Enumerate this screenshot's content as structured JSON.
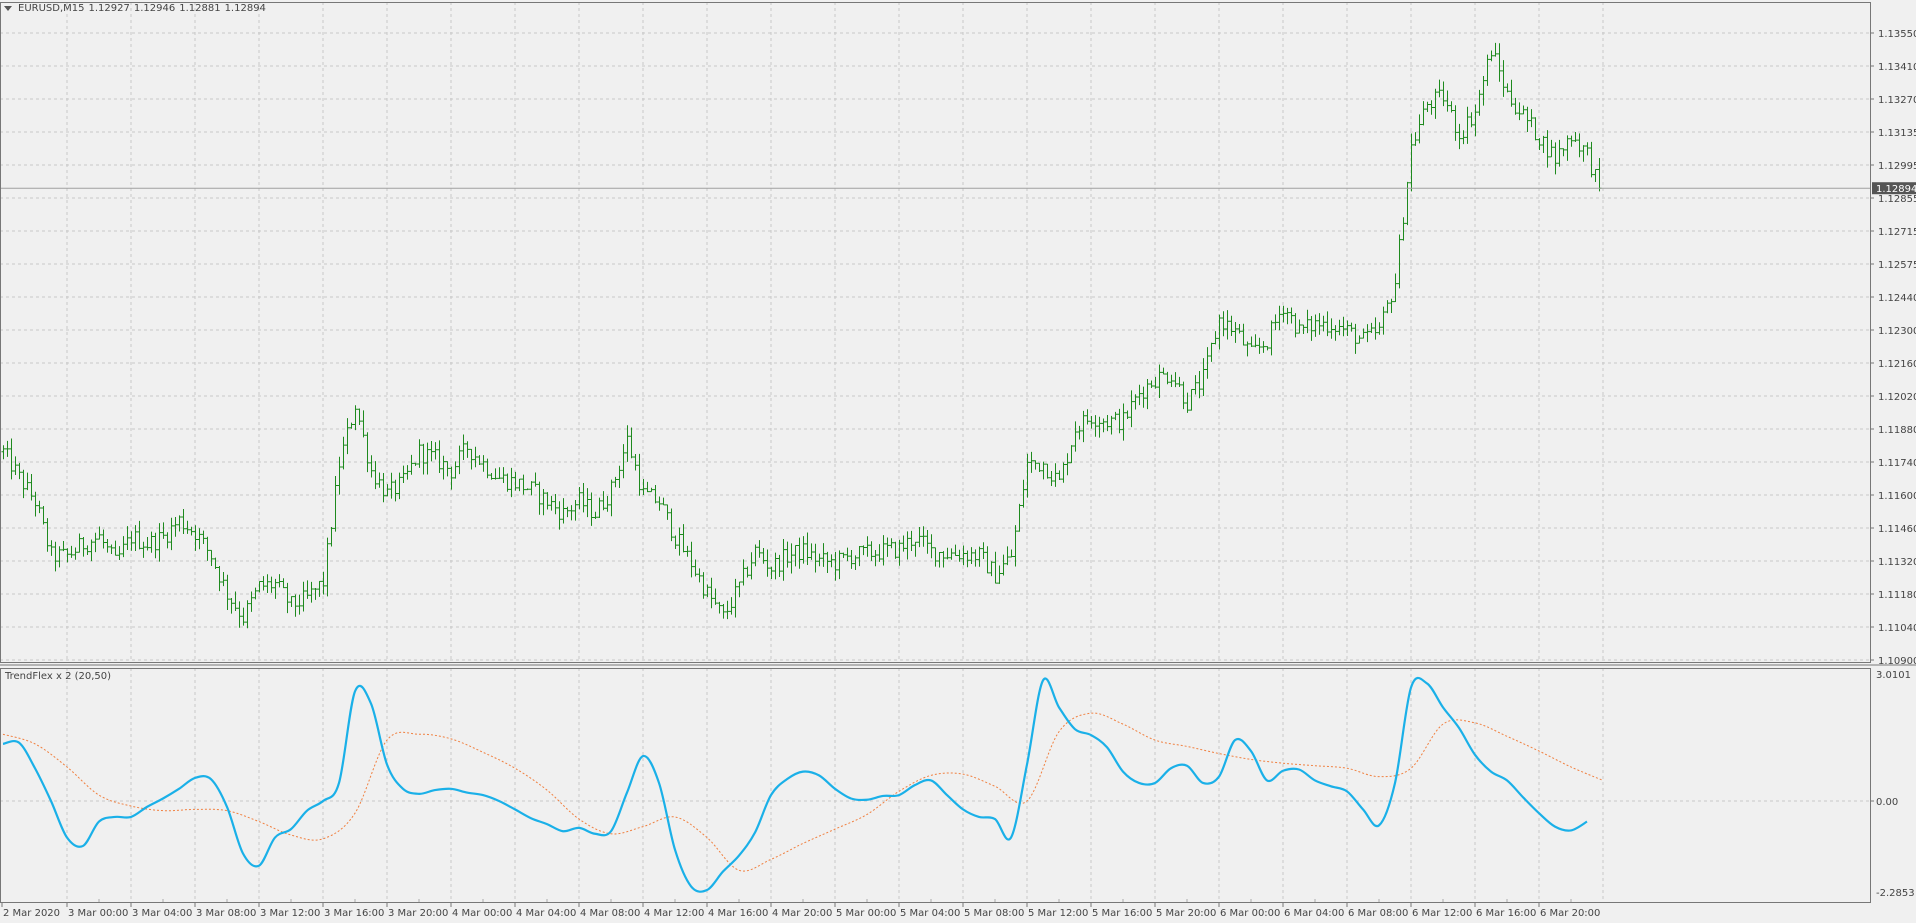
{
  "header": {
    "dropdown_icon": "triangle-down-icon",
    "symbol": "EURUSD,M15",
    "open": "1.12927",
    "high": "1.12946",
    "low": "1.12881",
    "close": "1.12894"
  },
  "colors": {
    "background": "#f0f0f0",
    "grid": "#c8c8c8",
    "bars": "#1e8a1e",
    "trendflex": "#1ab0e8",
    "signal": "#f08040",
    "price_line": "#a0a0a0",
    "price_tag": "#555555"
  },
  "price_axis": {
    "labels": [
      "1.13550",
      "1.13410",
      "1.13270",
      "1.13135",
      "1.12995",
      "1.12855",
      "1.12715",
      "1.12575",
      "1.12440",
      "1.12300",
      "1.12160",
      "1.12020",
      "1.11880",
      "1.11740",
      "1.11600",
      "1.11460",
      "1.11320",
      "1.11180",
      "1.11040",
      "1.10900"
    ],
    "current_price": "1.12894"
  },
  "indicator": {
    "label": "TrendFlex x 2 (20,50)",
    "axis_labels": [
      "3.0101",
      "0.00",
      "-2.2853"
    ],
    "max": 3.0101,
    "min": -2.2853
  },
  "time_axis": {
    "labels": [
      "2 Mar 2020",
      "3 Mar 00:00",
      "3 Mar 04:00",
      "3 Mar 08:00",
      "3 Mar 12:00",
      "3 Mar 16:00",
      "3 Mar 20:00",
      "4 Mar 00:00",
      "4 Mar 04:00",
      "4 Mar 08:00",
      "4 Mar 12:00",
      "4 Mar 16:00",
      "4 Mar 20:00",
      "5 Mar 00:00",
      "5 Mar 04:00",
      "5 Mar 08:00",
      "5 Mar 12:00",
      "5 Mar 16:00",
      "5 Mar 20:00",
      "6 Mar 00:00",
      "6 Mar 04:00",
      "6 Mar 08:00",
      "6 Mar 12:00",
      "6 Mar 16:00",
      "6 Mar 20:00"
    ]
  },
  "chart_data": [
    {
      "type": "ohlc",
      "timeframe": "M15",
      "series_start": "2 Mar 20:00",
      "step_hours": 1,
      "hourly_closes_approx": [
        1.1178,
        1.1167,
        1.1157,
        1.1134,
        1.1134,
        1.1139,
        1.1142,
        1.1131,
        1.1142,
        1.1139,
        1.1142,
        1.1149,
        1.1144,
        1.1134,
        1.1118,
        1.1108,
        1.1121,
        1.1122,
        1.1113,
        1.1116,
        1.1123,
        1.1173,
        1.1198,
        1.117,
        1.116,
        1.1165,
        1.1178,
        1.1175,
        1.117,
        1.118,
        1.1173,
        1.1167,
        1.1165,
        1.1162,
        1.1157,
        1.1152,
        1.1157,
        1.1152,
        1.1162,
        1.1183,
        1.116,
        1.1157,
        1.1142,
        1.1131,
        1.1118,
        1.1108,
        1.1121,
        1.1136,
        1.1129,
        1.1134,
        1.1136,
        1.1132,
        1.1131,
        1.1134,
        1.1135,
        1.1136,
        1.1137,
        1.1142,
        1.1136,
        1.1135,
        1.1135,
        1.1134,
        1.1126,
        1.1134,
        1.1173,
        1.1173,
        1.1165,
        1.1188,
        1.1193,
        1.1191,
        1.1191,
        1.1203,
        1.1209,
        1.1211,
        1.1199,
        1.1209,
        1.1234,
        1.1229,
        1.1219,
        1.1225,
        1.124,
        1.1229,
        1.1232,
        1.1232,
        1.1229,
        1.1225,
        1.1229,
        1.125,
        1.1307,
        1.1325,
        1.1328,
        1.1312,
        1.1322,
        1.1348,
        1.1329,
        1.132,
        1.1311,
        1.1302,
        1.1312,
        1.1304
      ],
      "last_close": 1.12894,
      "ylim": [
        1.109,
        1.1355
      ]
    },
    {
      "type": "line",
      "name": "TrendFlex x 2 (20,50)",
      "ylim": [
        -2.2853,
        3.0101
      ],
      "series": [
        {
          "start": "2 Mar 20:00",
          "step_hours": 1,
          "values": [
            1.36,
            1.39,
            0.78,
            0,
            -0.87,
            -1.07,
            -0.49,
            -0.38,
            -0.38,
            -0.14,
            0.06,
            0.29,
            0.55,
            0.52,
            -0.14,
            -1.25,
            -1.54,
            -0.87,
            -0.67,
            -0.23,
            0,
            0.43,
            2.61,
            2.32,
            0.87,
            0.29,
            0.17,
            0.26,
            0.29,
            0.2,
            0.14,
            0,
            -0.2,
            -0.41,
            -0.55,
            -0.72,
            -0.64,
            -0.78,
            -0.72,
            0.2,
            1.07,
            0.43,
            -1.16,
            -2.03,
            -2.12,
            -1.68,
            -1.3,
            -0.75,
            0.14,
            0.52,
            0.7,
            0.61,
            0.29,
            0.06,
            0.03,
            0.12,
            0.14,
            0.38,
            0.49,
            0.14,
            -0.2,
            -0.38,
            -0.43,
            -0.87,
            0.87,
            2.87,
            2.23,
            1.71,
            1.57,
            1.28,
            0.7,
            0.43,
            0.43,
            0.78,
            0.84,
            0.43,
            0.58,
            1.45,
            1.19,
            0.49,
            0.72,
            0.75,
            0.49,
            0.35,
            0.23,
            -0.2,
            -0.58,
            0.43,
            2.7,
            2.8,
            2.23,
            1.74,
            1.1,
            0.7,
            0.49,
            0.09,
            -0.29,
            -0.61,
            -0.7,
            -0.49
          ]
        },
        {
          "start": "2 Mar 20:00",
          "step_hours": 2,
          "values": [
            1.59,
            1.36,
            0.81,
            0.14,
            -0.12,
            -0.23,
            -0.2,
            -0.23,
            -0.49,
            -0.81,
            -0.9,
            -0.29,
            1.45,
            1.59,
            1.48,
            1.16,
            0.78,
            0.26,
            -0.43,
            -0.78,
            -0.61,
            -0.38,
            -0.87,
            -1.65,
            -1.39,
            -1.01,
            -0.67,
            -0.32,
            0.23,
            0.61,
            0.64,
            0.35,
            0,
            1.65,
            2.09,
            1.83,
            1.45,
            1.3,
            1.13,
            0.99,
            0.9,
            0.84,
            0.78,
            0.58,
            0.78,
            1.83,
            1.86,
            1.54,
            1.19,
            0.81,
            0.49
          ]
        }
      ]
    }
  ]
}
